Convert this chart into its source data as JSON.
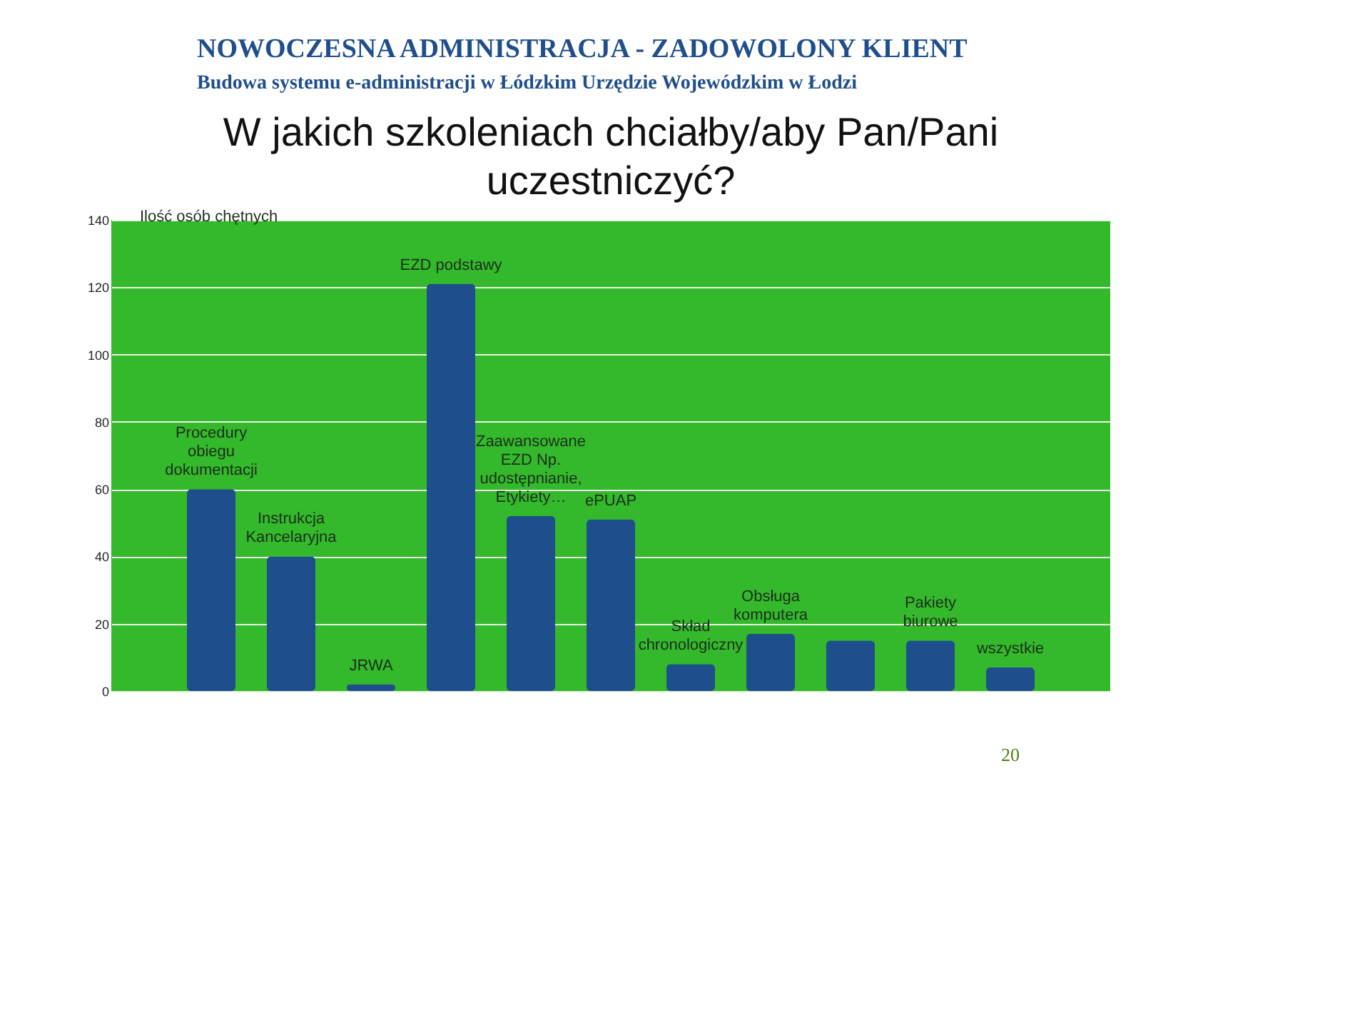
{
  "chart_data": {
    "type": "bar",
    "title": "W jakich szkoleniach chciałby/aby Pan/Pani uczestniczyć?",
    "ylabel": "Ilość osób chętnych",
    "categories": [
      "Procedury obiegu dokumentacji",
      "Instrukcja Kancelaryjna",
      "JRWA",
      "EZD podstawy",
      "Zaawansowane EZD Np. udostępnianie, Etykiety…",
      "ePUAP",
      "Skład chronologiczny",
      "Obsługa komputera",
      null,
      "Pakiety biurowe",
      "wszystkie"
    ],
    "values": [
      60,
      40,
      2,
      121,
      52,
      51,
      8,
      17,
      15,
      15,
      7
    ],
    "color": "#1f4e8c",
    "ylim": [
      0,
      140
    ],
    "yticks": [
      0,
      20,
      40,
      60,
      80,
      100,
      120,
      140
    ],
    "grid": "y",
    "annotations": [
      "NOWOCZESNA ADMINISTRACJA - ZADOWOLONY KLIENT",
      "Budowa systemu e-administracji w Łódzkim Urzędzie Wojewódzkim w Łodzi",
      "20"
    ]
  }
}
